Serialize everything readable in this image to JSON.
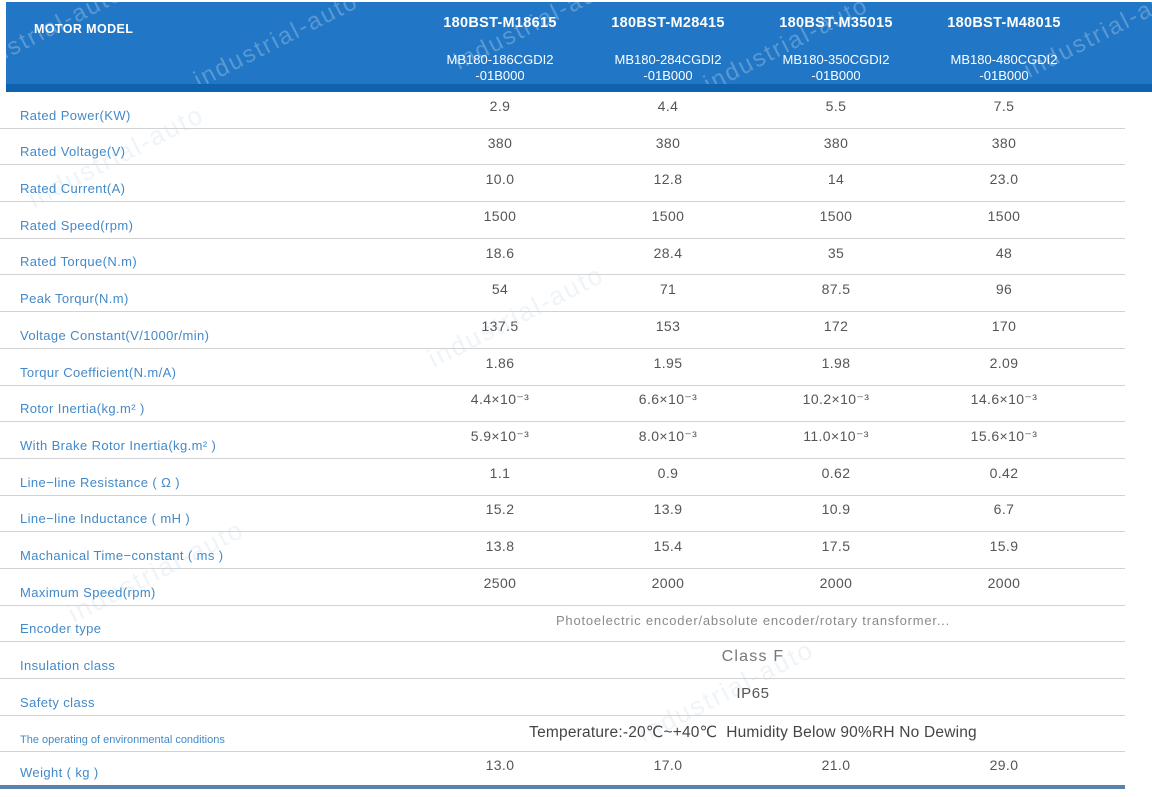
{
  "watermark": "industrial-auto",
  "colors": {
    "header_blue": "#2176c5",
    "header_strip_blue": "#0f62ad",
    "label_blue": "#4289c9",
    "value_gray": "#555555",
    "row_border": "#d2d2d2",
    "bottom_bar_blue": "#5b82aa"
  },
  "header": {
    "row_label": "MOTOR MODEL",
    "columns": [
      {
        "model": "180BST-M18615",
        "sub1": "MB180-186CGDI2",
        "sub2": "-01B000"
      },
      {
        "model": "180BST-M28415",
        "sub1": "MB180-284CGDI2",
        "sub2": "-01B000"
      },
      {
        "model": "180BST-M35015",
        "sub1": "MB180-350CGDI2",
        "sub2": "-01B000"
      },
      {
        "model": "180BST-M48015",
        "sub1": "MB180-480CGDI2",
        "sub2": "-01B000"
      }
    ]
  },
  "rows": [
    {
      "label": "Rated Power(KW)",
      "values": [
        "2.9",
        "4.4",
        "5.5",
        "7.5"
      ]
    },
    {
      "label": "Rated Voltage(V)",
      "values": [
        "380",
        "380",
        "380",
        "380"
      ]
    },
    {
      "label": "Rated Current(A)",
      "values": [
        "10.0",
        "12.8",
        "14",
        "23.0"
      ]
    },
    {
      "label": "Rated Speed(rpm)",
      "values": [
        "1500",
        "1500",
        "1500",
        "1500"
      ]
    },
    {
      "label": "Rated Torque(N.m)",
      "values": [
        "18.6",
        "28.4",
        "35",
        "48"
      ]
    },
    {
      "label": "Peak Torqur(N.m)",
      "values": [
        "54",
        "71",
        "87.5",
        "96"
      ]
    },
    {
      "label": "Voltage Constant(V/1000r/min)",
      "values": [
        "137.5",
        "153",
        "172",
        "170"
      ]
    },
    {
      "label": "Torqur Coefficient(N.m/A)",
      "values": [
        "1.86",
        "1.95",
        "1.98",
        "2.09"
      ]
    },
    {
      "label": "Rotor Inertia(kg.m² )",
      "values": [
        "4.4×10⁻³",
        "6.6×10⁻³",
        "10.2×10⁻³",
        "14.6×10⁻³"
      ]
    },
    {
      "label": "With Brake Rotor Inertia(kg.m² )",
      "values": [
        "5.9×10⁻³",
        "8.0×10⁻³",
        "11.0×10⁻³",
        "15.6×10⁻³"
      ]
    },
    {
      "label": "Line−line Resistance ( Ω )",
      "values": [
        "1.1",
        "0.9",
        "0.62",
        "0.42"
      ]
    },
    {
      "label": "Line−line Inductance ( mH )",
      "values": [
        "15.2",
        "13.9",
        "10.9",
        "6.7"
      ]
    },
    {
      "label": "Machanical Time−constant ( ms )",
      "values": [
        "13.8",
        "15.4",
        "17.5",
        "15.9"
      ]
    },
    {
      "label": "Maximum Speed(rpm)",
      "values": [
        "2500",
        "2000",
        "2000",
        "2000"
      ]
    },
    {
      "label": "Encoder type",
      "merged": "Photoelectric encoder/absolute encoder/rotary transformer..."
    },
    {
      "label": "Insulation class",
      "merged": "Class F"
    },
    {
      "label": "Safety class",
      "merged": "IP65"
    },
    {
      "label": "The operating of environmental conditions",
      "merged": "Temperature:-20℃~+40℃  Humidity Below 90%RH No Dewing"
    },
    {
      "label": "Weight ( kg )",
      "values": [
        "13.0",
        "17.0",
        "21.0",
        "29.0"
      ]
    }
  ]
}
